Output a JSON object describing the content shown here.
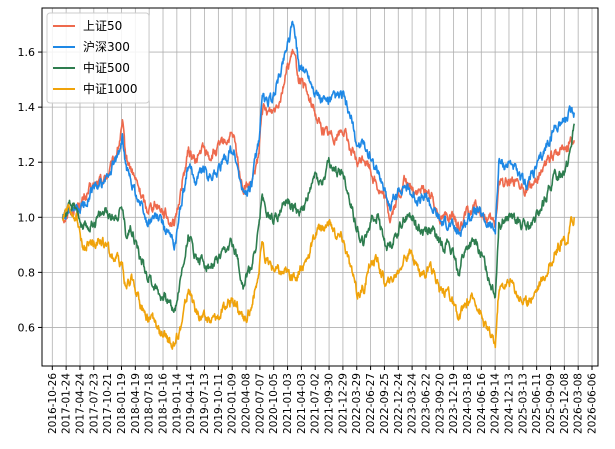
{
  "chart_data": {
    "type": "line",
    "title": "",
    "xlabel": "",
    "ylabel": "",
    "ylim": [
      0.46,
      1.76
    ],
    "grid": true,
    "legend_position": "top-left",
    "y_ticks": [
      0.6,
      0.8,
      1.0,
      1.2,
      1.4,
      1.6
    ],
    "y_tick_labels": [
      "0.6",
      "0.8",
      "1.0",
      "1.2",
      "1.4",
      "1.6"
    ],
    "x_range": [
      "2016-08-20",
      "2026-07-15"
    ],
    "x_ticks": [
      "2016-10-26",
      "2017-01-24",
      "2017-04-24",
      "2017-07-23",
      "2017-10-21",
      "2018-01-19",
      "2018-04-19",
      "2018-07-18",
      "2018-10-16",
      "2019-01-14",
      "2019-04-14",
      "2019-07-13",
      "2019-10-11",
      "2020-01-09",
      "2020-04-08",
      "2020-07-07",
      "2020-10-05",
      "2021-01-03",
      "2021-04-03",
      "2021-07-02",
      "2021-09-30",
      "2021-12-29",
      "2022-03-29",
      "2022-06-27",
      "2022-09-25",
      "2022-12-24",
      "2023-03-24",
      "2023-06-22",
      "2023-09-20",
      "2023-12-19",
      "2024-03-18",
      "2024-06-16",
      "2024-09-14",
      "2024-12-13",
      "2025-03-13",
      "2025-06-11",
      "2025-09-09",
      "2025-12-08",
      "2026-03-08",
      "2026-06-06"
    ],
    "series": [
      {
        "name": "上证50",
        "color": "#ee6a4d",
        "x": [
          "2017-01-01",
          "2017-02-15",
          "2017-04-01",
          "2017-05-15",
          "2017-07-01",
          "2017-08-15",
          "2017-10-01",
          "2017-11-15",
          "2018-01-01",
          "2018-01-25",
          "2018-02-15",
          "2018-04-01",
          "2018-05-15",
          "2018-07-01",
          "2018-08-15",
          "2018-10-01",
          "2018-11-15",
          "2018-12-31",
          "2019-02-15",
          "2019-03-31",
          "2019-05-15",
          "2019-07-01",
          "2019-08-15",
          "2019-10-01",
          "2019-11-15",
          "2019-12-31",
          "2020-01-20",
          "2020-03-20",
          "2020-05-15",
          "2020-07-01",
          "2020-07-20",
          "2020-08-15",
          "2020-10-01",
          "2020-11-15",
          "2020-12-31",
          "2021-02-10",
          "2021-03-20",
          "2021-05-15",
          "2021-07-01",
          "2021-08-15",
          "2021-10-01",
          "2021-11-15",
          "2021-12-31",
          "2022-02-15",
          "2022-03-31",
          "2022-05-15",
          "2022-07-01",
          "2022-08-15",
          "2022-10-01",
          "2022-10-31",
          "2022-12-31",
          "2023-01-31",
          "2023-03-31",
          "2023-05-15",
          "2023-07-01",
          "2023-08-15",
          "2023-10-01",
          "2023-11-15",
          "2024-01-20",
          "2024-02-15",
          "2024-03-31",
          "2024-05-15",
          "2024-07-01",
          "2024-09-15",
          "2024-10-08",
          "2024-11-15",
          "2024-12-31",
          "2025-02-15",
          "2025-04-08",
          "2025-05-15",
          "2025-07-01",
          "2025-08-15",
          "2025-10-01",
          "2025-11-15",
          "2025-12-31",
          "2026-01-20",
          "2026-02-10"
        ],
        "values": [
          1.0,
          1.02,
          1.04,
          1.06,
          1.1,
          1.12,
          1.14,
          1.18,
          1.26,
          1.33,
          1.22,
          1.16,
          1.1,
          1.03,
          1.05,
          1.04,
          1.0,
          0.97,
          1.12,
          1.24,
          1.2,
          1.25,
          1.22,
          1.24,
          1.27,
          1.29,
          1.28,
          1.1,
          1.12,
          1.22,
          1.4,
          1.38,
          1.39,
          1.44,
          1.54,
          1.6,
          1.5,
          1.44,
          1.38,
          1.32,
          1.3,
          1.3,
          1.32,
          1.25,
          1.19,
          1.22,
          1.17,
          1.11,
          1.06,
          1.0,
          1.08,
          1.13,
          1.1,
          1.09,
          1.1,
          1.05,
          1.0,
          1.01,
          0.96,
          0.99,
          1.02,
          1.04,
          1.0,
          0.97,
          1.12,
          1.13,
          1.14,
          1.1,
          1.1,
          1.12,
          1.16,
          1.2,
          1.22,
          1.25,
          1.26,
          1.29,
          1.28
        ]
      },
      {
        "name": "沪深300",
        "color": "#1e88e5",
        "x": [
          "2017-01-01",
          "2017-02-15",
          "2017-04-01",
          "2017-05-15",
          "2017-07-01",
          "2017-08-15",
          "2017-10-01",
          "2017-11-15",
          "2018-01-01",
          "2018-01-25",
          "2018-02-15",
          "2018-04-01",
          "2018-05-15",
          "2018-07-01",
          "2018-08-15",
          "2018-10-01",
          "2018-11-15",
          "2018-12-31",
          "2019-02-15",
          "2019-03-31",
          "2019-05-15",
          "2019-07-01",
          "2019-08-15",
          "2019-10-01",
          "2019-11-15",
          "2019-12-31",
          "2020-01-20",
          "2020-03-20",
          "2020-05-15",
          "2020-07-01",
          "2020-07-20",
          "2020-08-15",
          "2020-10-01",
          "2020-11-15",
          "2020-12-31",
          "2021-02-10",
          "2021-03-20",
          "2021-05-15",
          "2021-07-01",
          "2021-08-15",
          "2021-10-01",
          "2021-11-15",
          "2021-12-31",
          "2022-02-15",
          "2022-03-31",
          "2022-05-15",
          "2022-07-01",
          "2022-08-15",
          "2022-10-01",
          "2022-10-31",
          "2022-12-31",
          "2023-01-31",
          "2023-03-31",
          "2023-05-15",
          "2023-07-01",
          "2023-08-15",
          "2023-10-01",
          "2023-11-15",
          "2024-01-20",
          "2024-02-15",
          "2024-03-31",
          "2024-05-15",
          "2024-07-01",
          "2024-09-15",
          "2024-10-08",
          "2024-11-15",
          "2024-12-31",
          "2025-02-15",
          "2025-04-08",
          "2025-05-15",
          "2025-07-01",
          "2025-08-15",
          "2025-10-01",
          "2025-11-15",
          "2025-12-31",
          "2026-01-20",
          "2026-02-10"
        ],
        "values": [
          1.0,
          1.01,
          1.02,
          1.04,
          1.09,
          1.11,
          1.13,
          1.17,
          1.23,
          1.3,
          1.18,
          1.12,
          1.06,
          0.98,
          1.0,
          0.99,
          0.94,
          0.9,
          1.06,
          1.18,
          1.14,
          1.18,
          1.15,
          1.17,
          1.2,
          1.24,
          1.24,
          1.08,
          1.12,
          1.28,
          1.44,
          1.42,
          1.43,
          1.52,
          1.63,
          1.71,
          1.55,
          1.52,
          1.46,
          1.42,
          1.42,
          1.43,
          1.44,
          1.36,
          1.26,
          1.26,
          1.22,
          1.16,
          1.1,
          1.04,
          1.1,
          1.12,
          1.08,
          1.06,
          1.07,
          1.02,
          0.98,
          0.98,
          0.94,
          0.97,
          1.0,
          1.03,
          0.99,
          0.95,
          1.2,
          1.19,
          1.2,
          1.14,
          1.12,
          1.16,
          1.2,
          1.26,
          1.32,
          1.35,
          1.36,
          1.38,
          1.38
        ]
      },
      {
        "name": "中证500",
        "color": "#2e7d4f",
        "x": [
          "2017-01-01",
          "2017-02-15",
          "2017-04-01",
          "2017-05-15",
          "2017-07-01",
          "2017-08-15",
          "2017-10-01",
          "2017-11-15",
          "2018-01-01",
          "2018-01-25",
          "2018-02-15",
          "2018-04-01",
          "2018-05-15",
          "2018-07-01",
          "2018-08-15",
          "2018-10-01",
          "2018-11-15",
          "2018-12-31",
          "2019-02-15",
          "2019-03-31",
          "2019-05-15",
          "2019-07-01",
          "2019-08-15",
          "2019-10-01",
          "2019-11-15",
          "2019-12-31",
          "2020-01-20",
          "2020-03-20",
          "2020-05-15",
          "2020-07-01",
          "2020-07-20",
          "2020-08-15",
          "2020-10-01",
          "2020-11-15",
          "2020-12-31",
          "2021-02-10",
          "2021-03-20",
          "2021-05-15",
          "2021-07-01",
          "2021-08-15",
          "2021-10-01",
          "2021-11-15",
          "2021-12-31",
          "2022-02-15",
          "2022-03-31",
          "2022-05-15",
          "2022-07-01",
          "2022-08-15",
          "2022-10-01",
          "2022-10-31",
          "2022-12-31",
          "2023-01-31",
          "2023-03-31",
          "2023-05-15",
          "2023-07-01",
          "2023-08-15",
          "2023-10-01",
          "2023-11-15",
          "2024-01-20",
          "2024-02-15",
          "2024-03-31",
          "2024-05-15",
          "2024-07-01",
          "2024-09-15",
          "2024-10-08",
          "2024-11-15",
          "2024-12-31",
          "2025-02-15",
          "2025-04-08",
          "2025-05-15",
          "2025-07-01",
          "2025-08-15",
          "2025-10-01",
          "2025-11-15",
          "2025-12-31",
          "2026-01-20",
          "2026-02-10"
        ],
        "values": [
          1.0,
          1.03,
          1.04,
          0.95,
          0.97,
          1.0,
          1.02,
          1.0,
          1.02,
          1.04,
          0.95,
          0.96,
          0.86,
          0.8,
          0.76,
          0.72,
          0.7,
          0.66,
          0.8,
          0.94,
          0.86,
          0.84,
          0.82,
          0.84,
          0.86,
          0.9,
          0.9,
          0.76,
          0.82,
          0.96,
          1.08,
          1.02,
          1.0,
          1.02,
          1.06,
          1.04,
          1.02,
          1.06,
          1.16,
          1.12,
          1.2,
          1.16,
          1.16,
          1.06,
          0.96,
          0.9,
          1.0,
          1.0,
          0.9,
          0.9,
          0.96,
          1.0,
          1.0,
          0.95,
          0.96,
          0.94,
          0.9,
          0.91,
          0.8,
          0.86,
          0.9,
          0.9,
          0.84,
          0.72,
          0.98,
          0.99,
          1.0,
          0.98,
          0.96,
          0.97,
          1.02,
          1.08,
          1.14,
          1.16,
          1.2,
          1.26,
          1.34
        ]
      },
      {
        "name": "中证1000",
        "color": "#f0a30a",
        "x": [
          "2017-01-01",
          "2017-02-15",
          "2017-04-01",
          "2017-05-15",
          "2017-07-01",
          "2017-08-15",
          "2017-10-01",
          "2017-11-15",
          "2018-01-01",
          "2018-01-25",
          "2018-02-15",
          "2018-04-01",
          "2018-05-15",
          "2018-07-01",
          "2018-08-15",
          "2018-10-01",
          "2018-11-15",
          "2018-12-31",
          "2019-02-15",
          "2019-03-31",
          "2019-05-15",
          "2019-07-01",
          "2019-08-15",
          "2019-10-01",
          "2019-11-15",
          "2019-12-31",
          "2020-01-20",
          "2020-03-20",
          "2020-05-15",
          "2020-07-01",
          "2020-07-20",
          "2020-08-15",
          "2020-10-01",
          "2020-11-15",
          "2020-12-31",
          "2021-02-10",
          "2021-03-20",
          "2021-05-15",
          "2021-07-01",
          "2021-08-15",
          "2021-10-01",
          "2021-11-15",
          "2021-12-31",
          "2022-02-15",
          "2022-03-31",
          "2022-05-15",
          "2022-07-01",
          "2022-08-15",
          "2022-10-01",
          "2022-10-31",
          "2022-12-31",
          "2023-01-31",
          "2023-03-31",
          "2023-05-15",
          "2023-07-01",
          "2023-08-15",
          "2023-10-01",
          "2023-11-15",
          "2024-01-20",
          "2024-02-15",
          "2024-03-31",
          "2024-05-15",
          "2024-07-01",
          "2024-09-15",
          "2024-10-08",
          "2024-11-15",
          "2024-12-31",
          "2025-02-15",
          "2025-04-08",
          "2025-05-15",
          "2025-07-01",
          "2025-08-15",
          "2025-10-01",
          "2025-11-15",
          "2025-12-31",
          "2026-01-20",
          "2026-02-10"
        ],
        "values": [
          1.0,
          1.02,
          1.0,
          0.88,
          0.9,
          0.92,
          0.9,
          0.86,
          0.84,
          0.82,
          0.75,
          0.77,
          0.7,
          0.64,
          0.62,
          0.58,
          0.55,
          0.53,
          0.62,
          0.74,
          0.66,
          0.64,
          0.62,
          0.64,
          0.66,
          0.7,
          0.7,
          0.62,
          0.68,
          0.8,
          0.9,
          0.84,
          0.82,
          0.8,
          0.8,
          0.78,
          0.8,
          0.86,
          0.94,
          0.96,
          0.98,
          0.94,
          0.92,
          0.82,
          0.72,
          0.74,
          0.84,
          0.84,
          0.76,
          0.76,
          0.82,
          0.86,
          0.86,
          0.8,
          0.8,
          0.8,
          0.72,
          0.74,
          0.62,
          0.66,
          0.7,
          0.7,
          0.62,
          0.54,
          0.74,
          0.76,
          0.76,
          0.72,
          0.68,
          0.72,
          0.76,
          0.8,
          0.86,
          0.9,
          0.92,
          0.98,
          1.0
        ]
      }
    ]
  }
}
